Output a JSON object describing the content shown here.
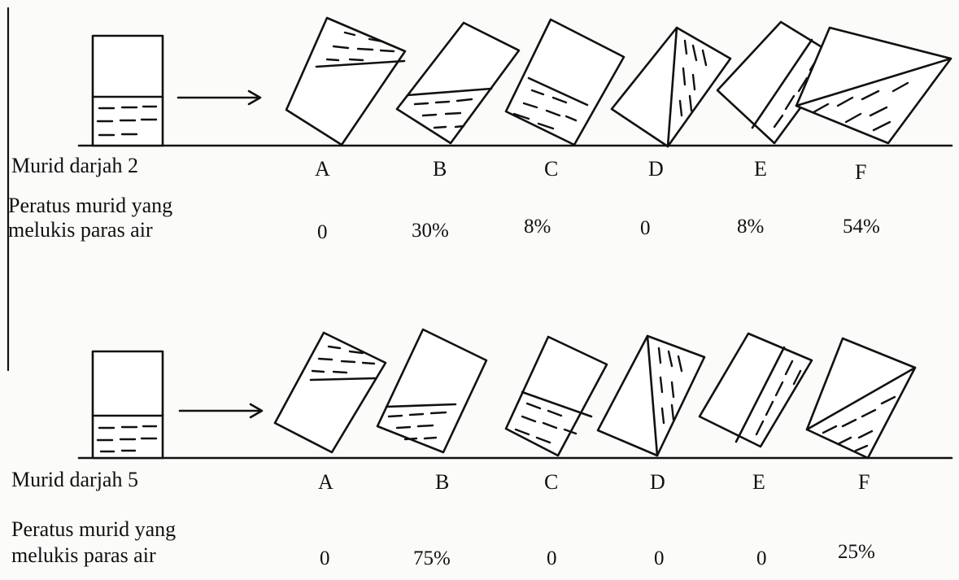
{
  "panels": [
    {
      "group_label": "Murid darjah 2",
      "description": [
        "Peratus murid yang",
        "melukis paras air"
      ],
      "options": [
        {
          "letter": "A",
          "value": "0"
        },
        {
          "letter": "B",
          "value": "30%"
        },
        {
          "letter": "C",
          "value": "8%"
        },
        {
          "letter": "D",
          "value": "0"
        },
        {
          "letter": "E",
          "value": "8%"
        },
        {
          "letter": "F",
          "value": "54%"
        }
      ]
    },
    {
      "group_label": "Murid darjah 5",
      "description": [
        "Peratus murid yang",
        "melukis paras air"
      ],
      "options": [
        {
          "letter": "A",
          "value": "0"
        },
        {
          "letter": "B",
          "value": "75%"
        },
        {
          "letter": "C",
          "value": "0"
        },
        {
          "letter": "D",
          "value": "0"
        },
        {
          "letter": "E",
          "value": "0"
        },
        {
          "letter": "F",
          "value": "25%"
        }
      ]
    }
  ]
}
